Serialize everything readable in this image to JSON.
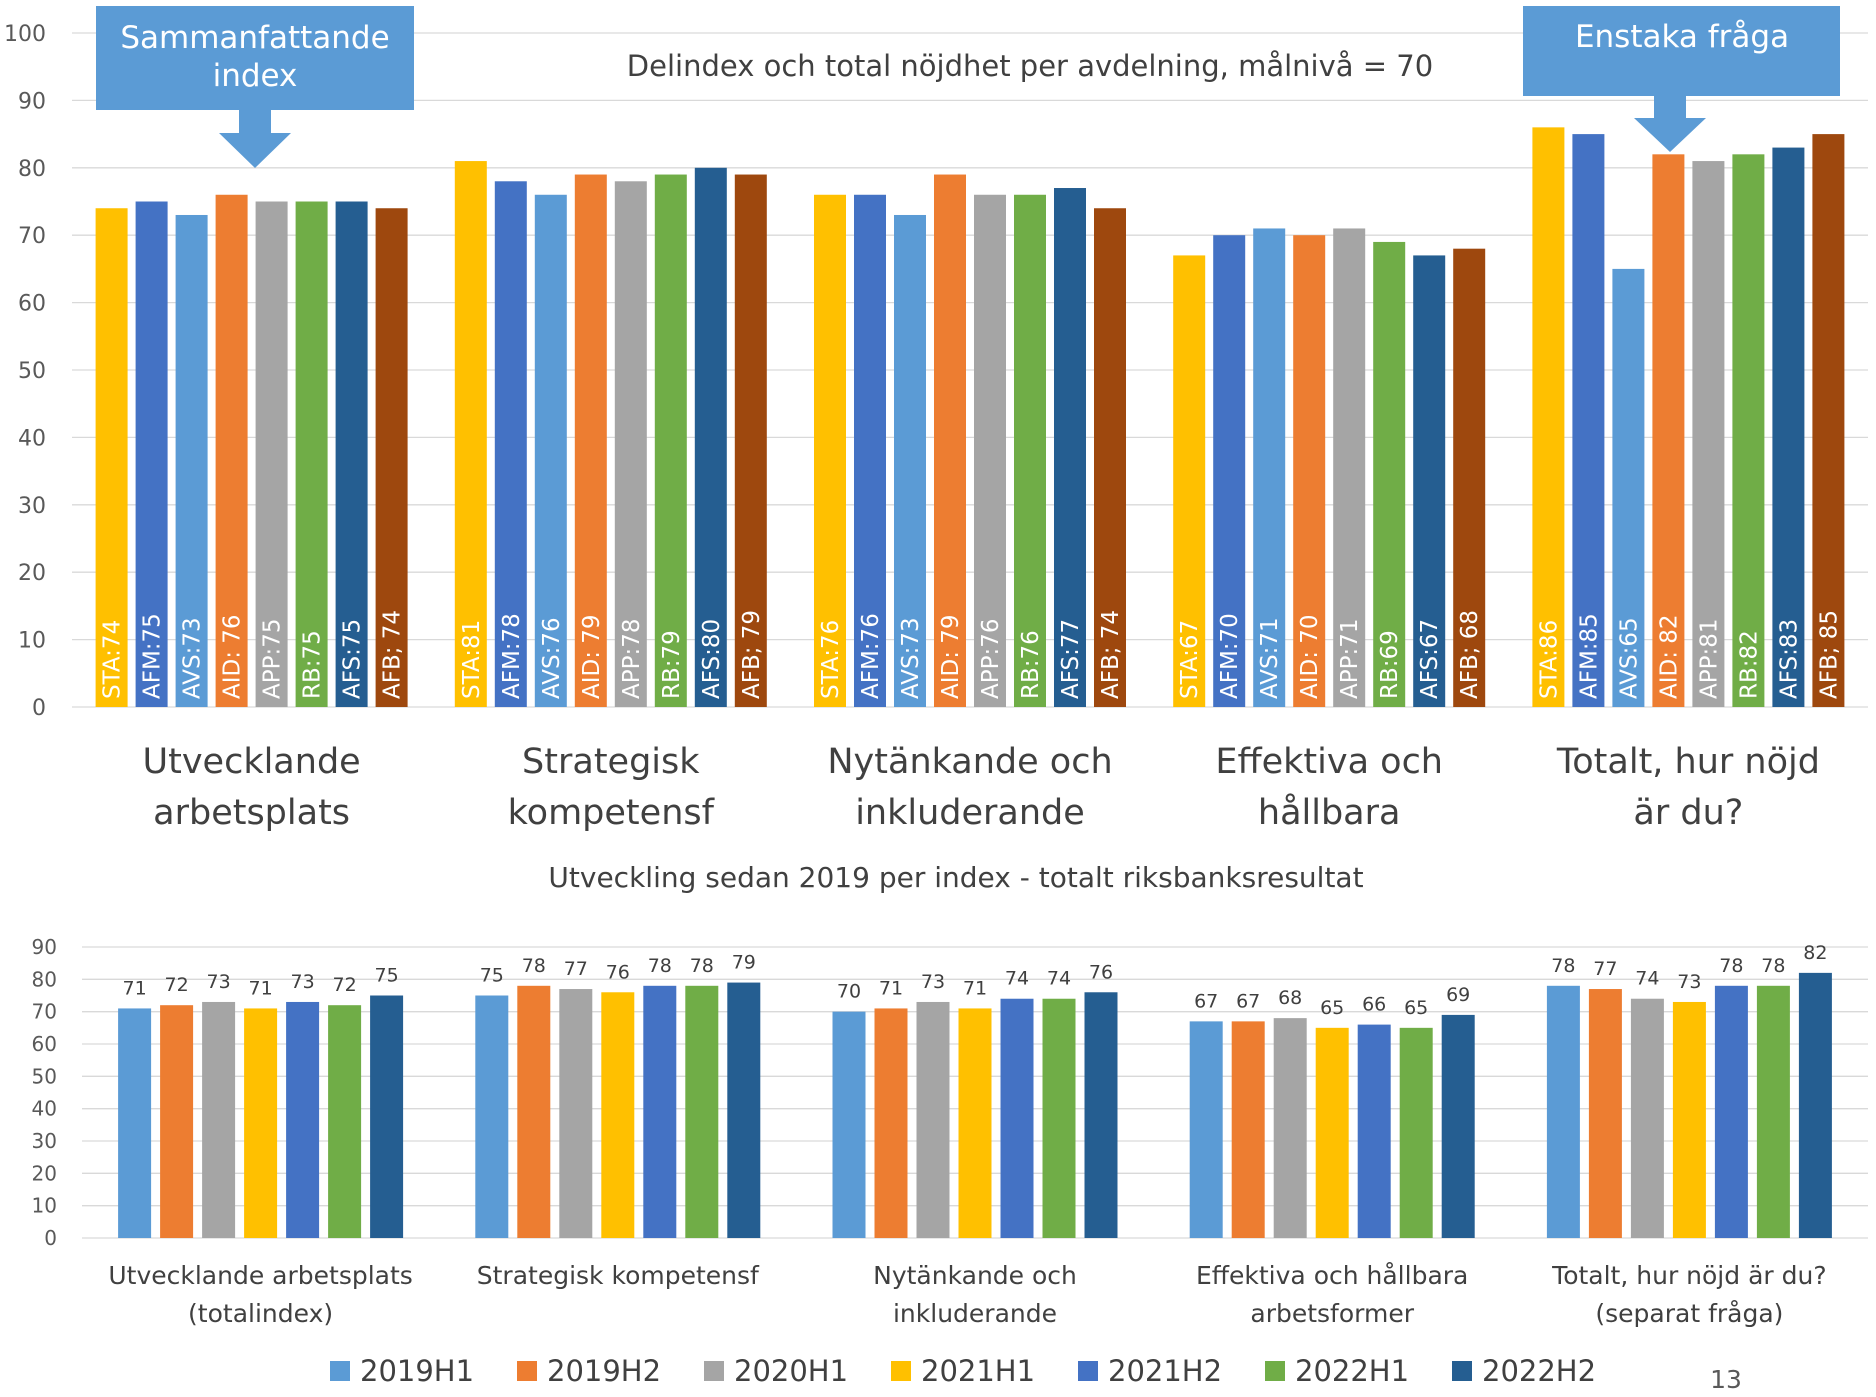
{
  "page_number": "13",
  "callouts": {
    "summary_label": "Sammanfattande index",
    "single_label": "Enstaka fråga",
    "fill": "#5b9bd5"
  },
  "chart_data": [
    {
      "type": "bar",
      "title": "Delindex och total nöjdhet per avdelning, målnivå = 70",
      "xlabel": "",
      "ylabel": "",
      "ylim": [
        0,
        100
      ],
      "yticks": [
        0,
        10,
        20,
        30,
        40,
        50,
        60,
        70,
        80,
        90,
        100
      ],
      "grid": true,
      "categories": [
        "Utvecklande arbetsplats",
        "Strategisk kompetensf",
        "Nytänkande och inkluderande",
        "Effektiva och hållbara",
        "Totalt, hur nöjd är du?"
      ],
      "series": [
        {
          "code": "STA",
          "color": "#ffc000",
          "values": [
            74,
            81,
            76,
            67,
            86
          ],
          "labels": [
            "STA:74",
            "STA:81",
            "STA:76",
            "STA:67",
            "STA:86"
          ]
        },
        {
          "code": "AFM",
          "color": "#4472c4",
          "values": [
            75,
            78,
            76,
            70,
            85
          ],
          "labels": [
            "AFM:75",
            "AFM:78",
            "AFM:76",
            "AFM:70",
            "AFM:85"
          ]
        },
        {
          "code": "AVS",
          "color": "#5b9bd5",
          "values": [
            73,
            76,
            73,
            71,
            65
          ],
          "labels": [
            "AVS:73",
            "AVS:76",
            "AVS:73",
            "AVS:71",
            "AVS:65"
          ]
        },
        {
          "code": "AID",
          "color": "#ed7d31",
          "values": [
            76,
            79,
            79,
            70,
            82
          ],
          "labels": [
            "AID: 76",
            "AID: 79",
            "AID: 79",
            "AID: 70",
            "AID: 82"
          ]
        },
        {
          "code": "APP",
          "color": "#a5a5a5",
          "values": [
            75,
            78,
            76,
            71,
            81
          ],
          "labels": [
            "APP:75",
            "APP:78",
            "APP:76",
            "APP:71",
            "APP:81"
          ]
        },
        {
          "code": "RB",
          "color": "#70ad47",
          "values": [
            75,
            79,
            76,
            69,
            82
          ],
          "labels": [
            "RB:75",
            "RB:79",
            "RB:76",
            "RB:69",
            "RB:82"
          ]
        },
        {
          "code": "AFS",
          "color": "#255e91",
          "values": [
            75,
            80,
            77,
            67,
            83
          ],
          "labels": [
            "AFS:75",
            "AFS:80",
            "AFS:77",
            "AFS:67",
            "AFS:83"
          ]
        },
        {
          "code": "AFB",
          "color": "#9e480e",
          "values": [
            74,
            79,
            74,
            68,
            85
          ],
          "labels": [
            "AFB; 74",
            "AFB; 79",
            "AFB; 74",
            "AFB; 68",
            "AFB; 85"
          ]
        }
      ]
    },
    {
      "type": "bar",
      "title": "Utveckling sedan 2019 per index - totalt riksbanksresultat",
      "xlabel": "",
      "ylabel": "",
      "ylim": [
        0,
        90
      ],
      "yticks": [
        0,
        10,
        20,
        30,
        40,
        50,
        60,
        70,
        80,
        90
      ],
      "grid": true,
      "legend": "bottom",
      "categories": [
        "Utvecklande arbetsplats (totalindex)",
        "Strategisk kompetensf",
        "Nytänkande och inkluderande",
        "Effektiva och hållbara arbetsformer",
        "Totalt, hur nöjd är du? (separat fråga)"
      ],
      "series": [
        {
          "name": "2019H1",
          "color": "#5b9bd5",
          "values": [
            71,
            75,
            70,
            67,
            78
          ]
        },
        {
          "name": "2019H2",
          "color": "#ed7d31",
          "values": [
            72,
            78,
            71,
            67,
            77
          ]
        },
        {
          "name": "2020H1",
          "color": "#a5a5a5",
          "values": [
            73,
            77,
            73,
            68,
            74
          ]
        },
        {
          "name": "2021H1",
          "color": "#ffc000",
          "values": [
            71,
            76,
            71,
            65,
            73
          ]
        },
        {
          "name": "2021H2",
          "color": "#4472c4",
          "values": [
            73,
            78,
            74,
            66,
            78
          ]
        },
        {
          "name": "2022H1",
          "color": "#70ad47",
          "values": [
            72,
            78,
            74,
            65,
            78
          ]
        },
        {
          "name": "2022H2",
          "color": "#255e91",
          "values": [
            75,
            79,
            76,
            69,
            82
          ]
        }
      ]
    }
  ]
}
